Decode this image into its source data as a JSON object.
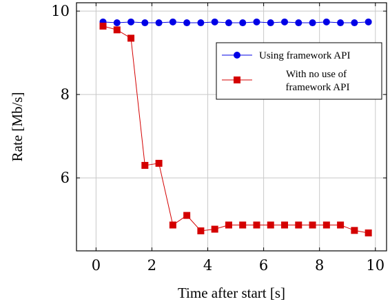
{
  "chart_data": {
    "type": "line",
    "title": "",
    "xlabel": "Time after start [s]",
    "ylabel": "Rate [Mb/s]",
    "xlim": [
      -0.7,
      10.4
    ],
    "ylim": [
      4.25,
      10.2
    ],
    "xticks": [
      0,
      2,
      4,
      6,
      8,
      10
    ],
    "yticks": [
      6,
      8,
      10
    ],
    "grid": true,
    "legend": {
      "position": "top-right"
    },
    "x": [
      0.25,
      0.75,
      1.25,
      1.75,
      2.25,
      2.75,
      3.25,
      3.75,
      4.25,
      4.75,
      5.25,
      5.75,
      6.25,
      6.75,
      7.25,
      7.75,
      8.25,
      8.75,
      9.25,
      9.75
    ],
    "series": [
      {
        "name": "Using framework API",
        "color": "#0000e6",
        "marker": "circle",
        "values": [
          9.74,
          9.72,
          9.74,
          9.72,
          9.72,
          9.74,
          9.72,
          9.72,
          9.74,
          9.72,
          9.72,
          9.74,
          9.72,
          9.74,
          9.72,
          9.72,
          9.74,
          9.72,
          9.72,
          9.74
        ]
      },
      {
        "name": "With no use of framework API",
        "name_lines": [
          "With no use of",
          "framework API"
        ],
        "color": "#d40000",
        "marker": "square",
        "values": [
          9.64,
          9.55,
          9.35,
          6.3,
          6.35,
          4.87,
          5.1,
          4.73,
          4.77,
          4.87,
          4.87,
          4.87,
          4.87,
          4.87,
          4.87,
          4.87,
          4.87,
          4.87,
          4.74,
          4.68
        ]
      }
    ]
  }
}
